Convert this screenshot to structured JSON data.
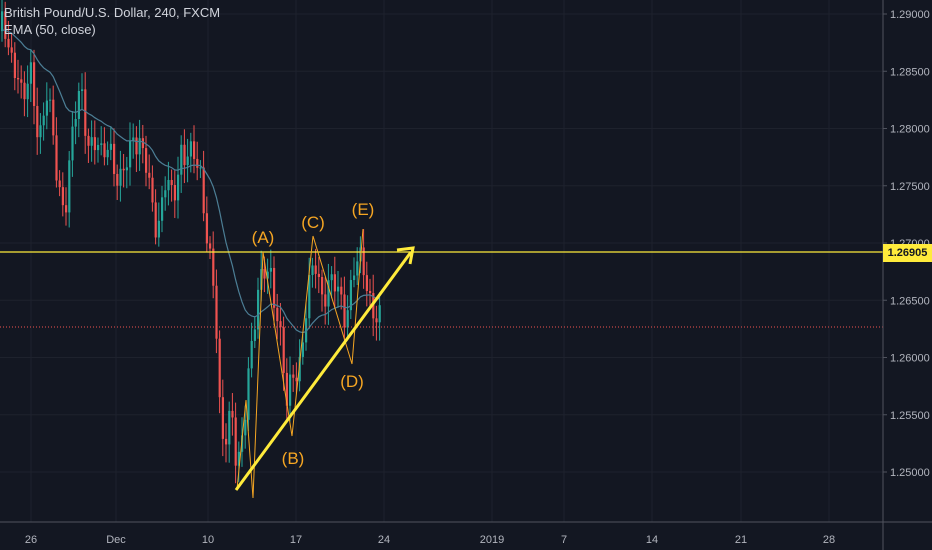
{
  "legend": {
    "symbol_line": "British Pound/U.S. Dollar, 240, FXCM",
    "indicator_line": "EMA (50, close)"
  },
  "price_tag": "1.26905",
  "colors": {
    "background": "#131722",
    "grid": "#2a2e39",
    "up": "#26a69a",
    "down": "#ef5350",
    "ema": "#4c7e95",
    "trendline": "#ffeb3b",
    "pattern": "#f6a623",
    "dotted": "#ef5350"
  },
  "chart_data": {
    "type": "candlestick",
    "title": "British Pound/U.S. Dollar, 240, FXCM",
    "indicator": "EMA (50, close)",
    "ylim": [
      1.2465,
      1.2905
    ],
    "y_ticks": [
      "1.29000",
      "1.28500",
      "1.28000",
      "1.27500",
      "1.27000",
      "1.26500",
      "1.26000",
      "1.25500",
      "1.25000"
    ],
    "x_ticks": [
      "26",
      "Dec",
      "10",
      "17",
      "24",
      "2019",
      "7",
      "14",
      "21",
      "28"
    ],
    "horizontal_level": 1.26905,
    "dotted_level": 1.2624,
    "annotations": [
      "(A)",
      "(B)",
      "(C)",
      "(D)",
      "(E)"
    ],
    "trend": "rising support line with arrow"
  }
}
